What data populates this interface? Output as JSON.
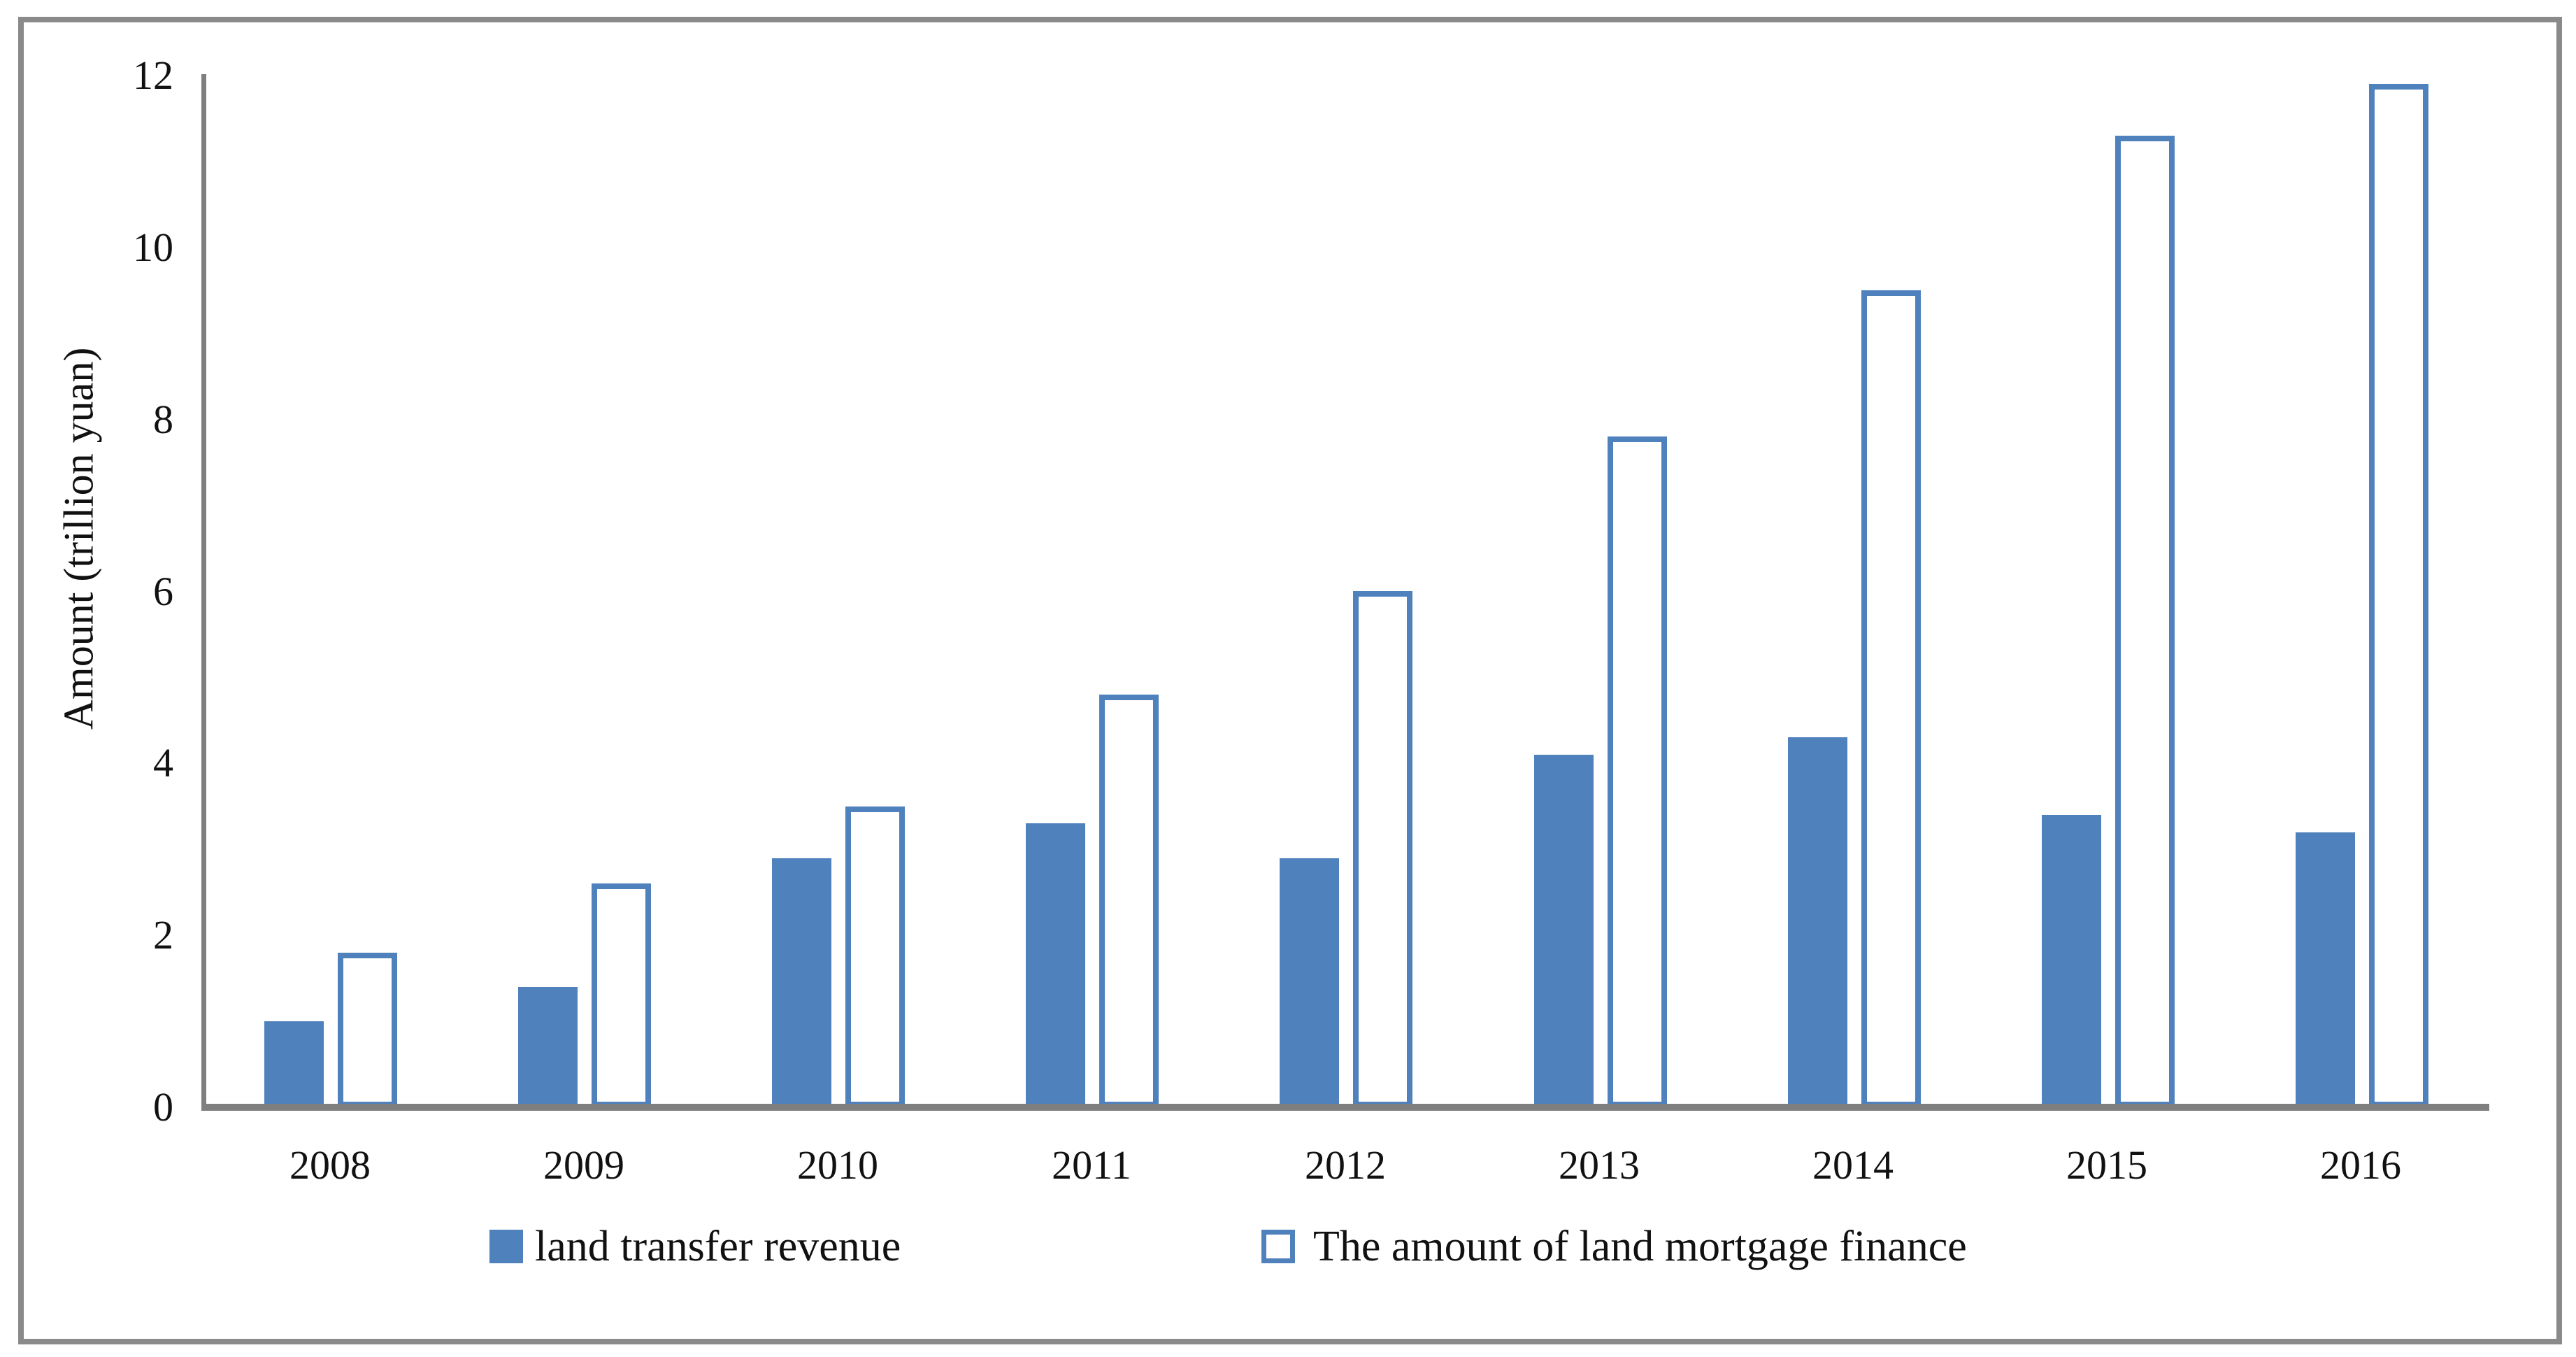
{
  "chart_data": {
    "type": "bar",
    "title": "",
    "ylabel": "Amount (trillion yuan)",
    "xlabel": "",
    "categories": [
      "2008",
      "2009",
      "2010",
      "2011",
      "2012",
      "2013",
      "2014",
      "2015",
      "2016"
    ],
    "series": [
      {
        "name": "land transfer revenue",
        "style": "solid",
        "values": [
          1.0,
          1.4,
          2.9,
          3.3,
          2.9,
          4.1,
          4.3,
          3.4,
          3.2
        ]
      },
      {
        "name": "The amount of land mortgage finance",
        "style": "outline",
        "values": [
          1.8,
          2.6,
          3.5,
          4.8,
          6.0,
          7.8,
          9.5,
          11.3,
          11.9
        ]
      }
    ],
    "ylim": [
      0,
      12
    ],
    "yticks": [
      0,
      2,
      4,
      6,
      8,
      10,
      12
    ],
    "grid": false,
    "legend_position": "bottom"
  },
  "colors": {
    "bar_fill": "#4f81bd",
    "bar_outline": "#4f81bd",
    "axis": "#7f7f7f",
    "figure_border": "#8a8a8a",
    "text": "#111111",
    "background": "#ffffff"
  }
}
